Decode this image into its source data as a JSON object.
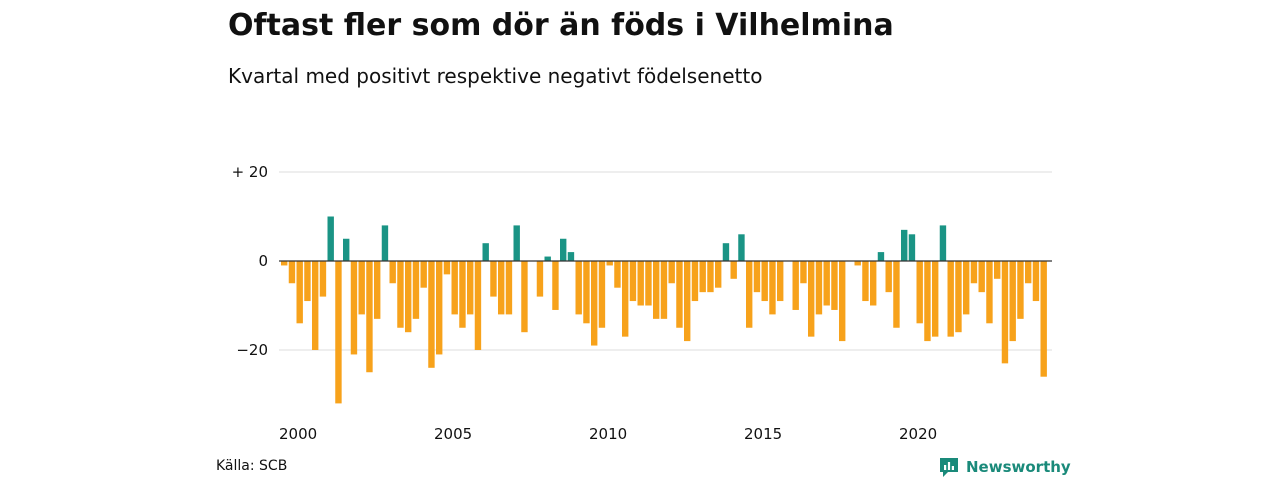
{
  "title": "Oftast fler som dör än föds i Vilhelmina",
  "subtitle": "Kvartal med positivt respektive negativt födelsenetto",
  "source": "Källa: SCB",
  "brand": {
    "name": "Newsworthy",
    "icon": "newsworthy-logo-icon"
  },
  "colors": {
    "positive": "#1a9485",
    "negative": "#f7a21b",
    "grid": "#dddddd",
    "zero": "#333333"
  },
  "chart_data": {
    "type": "bar",
    "title": "Oftast fler som dör än föds i Vilhelmina",
    "subtitle": "Kvartal med positivt respektive negativt födelsenetto",
    "xlabel": "",
    "ylabel": "",
    "ylim": [
      -33,
      20
    ],
    "yticks": [
      {
        "value": 20,
        "label": "+ 20"
      },
      {
        "value": 0,
        "label": "0"
      },
      {
        "value": -20,
        "label": "−20"
      }
    ],
    "xticks": [
      {
        "year": 2000,
        "label": "2000"
      },
      {
        "year": 2005,
        "label": "2005"
      },
      {
        "year": 2010,
        "label": "2010"
      },
      {
        "year": 2015,
        "label": "2015"
      },
      {
        "year": 2020,
        "label": "2020"
      }
    ],
    "start_year": 2000,
    "periods_per_year": 4,
    "values": [
      -1,
      -5,
      -14,
      -9,
      -20,
      -8,
      10,
      -32,
      5,
      -21,
      -12,
      -25,
      -13,
      8,
      -5,
      -15,
      -16,
      -13,
      -6,
      -24,
      -21,
      -3,
      -12,
      -15,
      -12,
      -20,
      4,
      -8,
      -12,
      -12,
      8,
      -16,
      0,
      -8,
      1,
      -11,
      5,
      2,
      -12,
      -14,
      -19,
      -15,
      -1,
      -6,
      -17,
      -9,
      -10,
      -10,
      -13,
      -13,
      -5,
      -15,
      -18,
      -9,
      -7,
      -7,
      -6,
      4,
      -4,
      6,
      -15,
      -7,
      -9,
      -12,
      -9,
      0,
      -11,
      -5,
      -17,
      -12,
      -10,
      -11,
      -18,
      0,
      -1,
      -9,
      -10,
      2,
      -7,
      -15,
      7,
      6,
      -14,
      -18,
      -17,
      8,
      -17,
      -16,
      -12,
      -5,
      -7,
      -14,
      -4,
      -23,
      -18,
      -13,
      -5,
      -9,
      -26
    ]
  }
}
